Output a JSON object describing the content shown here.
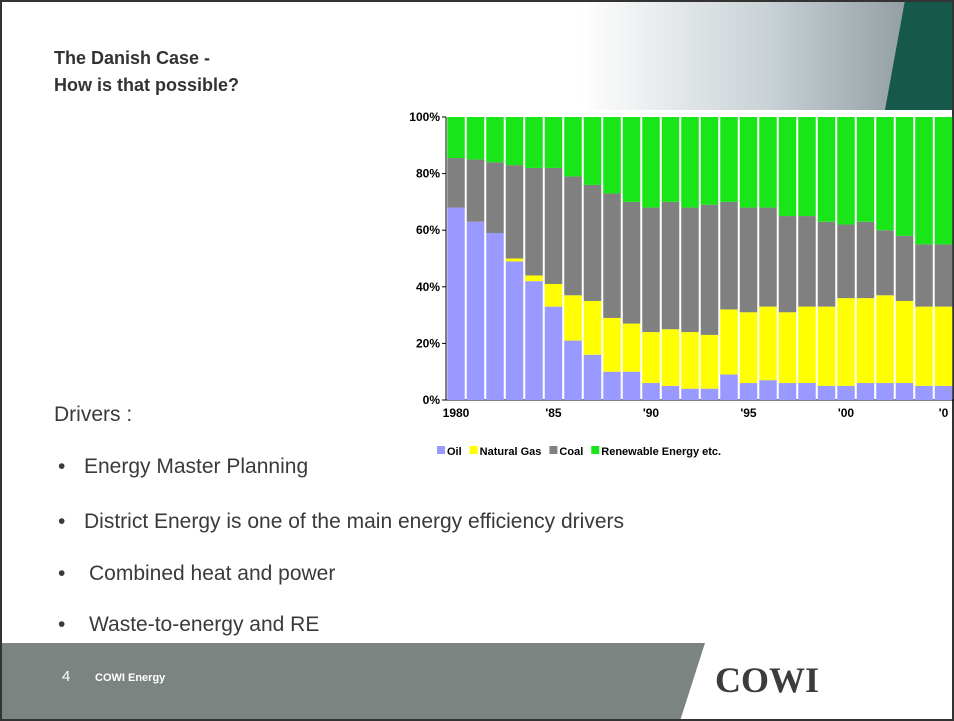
{
  "slide": {
    "title_lines": [
      "The Danish Case -",
      "How is that possible?"
    ],
    "drivers_label": "Drivers :",
    "bullets": [
      "Energy Master Planning",
      "District Energy is one of the main energy efficiency drivers",
      "Combined heat and power",
      "Waste-to-energy and RE"
    ],
    "footer": {
      "page_number": "4",
      "section": "COWI Energy",
      "logo": "COWI"
    }
  },
  "chart_data": {
    "type": "stacked_bar",
    "categories": [
      "1980",
      null,
      null,
      null,
      null,
      "'85",
      null,
      null,
      null,
      null,
      "'90",
      null,
      null,
      null,
      null,
      "'95",
      null,
      null,
      null,
      null,
      "'00",
      null,
      null,
      null,
      null,
      "'0"
    ],
    "series": [
      {
        "name": "Oil",
        "color": "#9999ff",
        "values": [
          68,
          63,
          59,
          49,
          42,
          33,
          21,
          16,
          10,
          10,
          6,
          5,
          4,
          4,
          9,
          6,
          7,
          6,
          6,
          5,
          5,
          6,
          6,
          6,
          5,
          5
        ]
      },
      {
        "name": "Natural Gas",
        "color": "#ffff00",
        "values": [
          0,
          0,
          0,
          1,
          2,
          8,
          16,
          19,
          19,
          17,
          18,
          20,
          20,
          19,
          23,
          25,
          26,
          25,
          27,
          28,
          31,
          30,
          31,
          29,
          28,
          28
        ]
      },
      {
        "name": "Coal",
        "color": "#808080",
        "values": [
          17.5,
          22,
          25,
          33,
          38,
          41,
          42,
          41,
          44,
          43,
          44,
          45,
          44,
          46,
          38,
          37,
          35,
          34,
          32,
          30,
          26,
          27,
          23,
          23,
          22,
          22
        ]
      },
      {
        "name": "Renewable Energy etc.",
        "color": "#19e619",
        "values": [
          14.5,
          15,
          16,
          17,
          18,
          18,
          21,
          24,
          27,
          30,
          32,
          30,
          32,
          31,
          30,
          32,
          32,
          35,
          35,
          37,
          38,
          37,
          40,
          42,
          45,
          45
        ]
      }
    ],
    "ylim": [
      0,
      100
    ],
    "yticks": [
      {
        "value": 0,
        "label": "0%"
      },
      {
        "value": 20,
        "label": "20%"
      },
      {
        "value": 40,
        "label": "40%"
      },
      {
        "value": 60,
        "label": "60%"
      },
      {
        "value": 80,
        "label": "80%"
      },
      {
        "value": 100,
        "label": "100%"
      }
    ],
    "grid": false
  }
}
